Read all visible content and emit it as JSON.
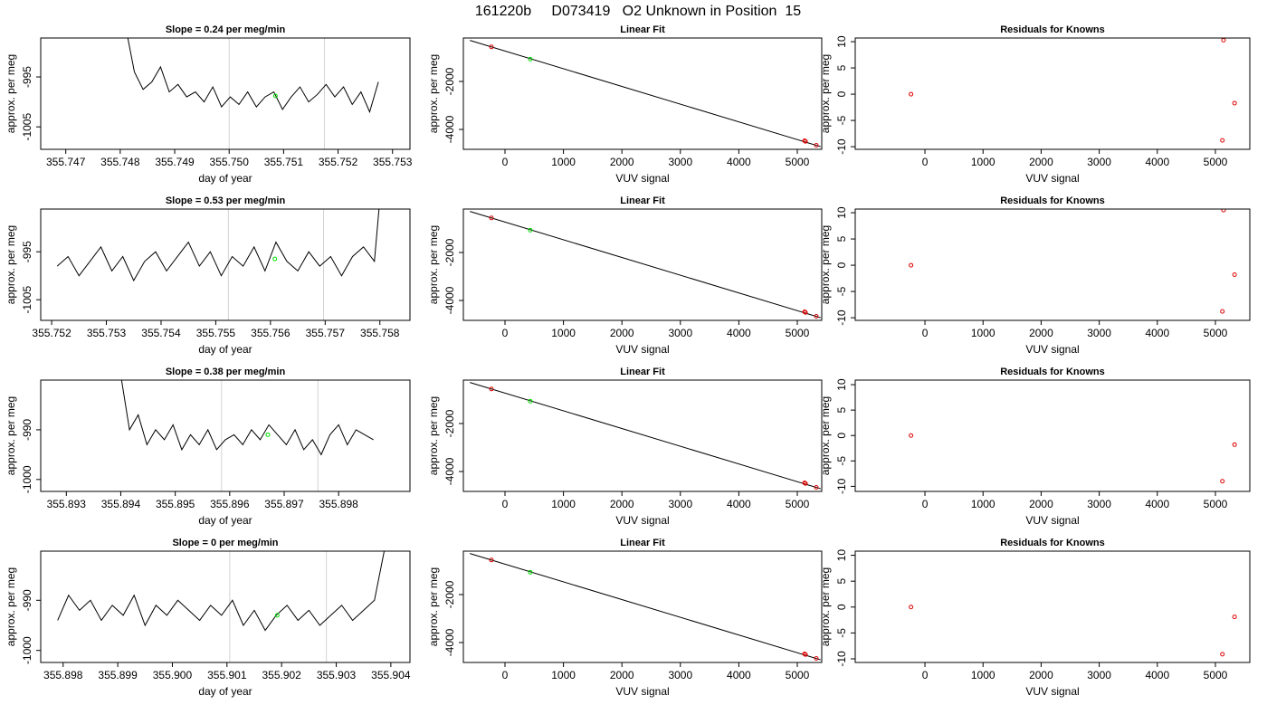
{
  "title": "161220b     D073419   O2 Unknown in Position  15",
  "chart_data": [
    {
      "type": "line",
      "title": "Slope =  0.24  per meg/min",
      "xlabel": "day of year",
      "ylabel": "approx. per meg",
      "xlim": [
        355.74654,
        355.75332
      ],
      "ylim": [
        -1009.5,
        -987.2
      ],
      "xticks": [
        355.747,
        355.748,
        355.749,
        {
          "value": 355.75,
          "label": "355.750"
        },
        355.751,
        355.752,
        355.753
      ],
      "yticks": [
        -1005,
        -995
      ],
      "vlines": [
        355.75,
        355.75175
      ],
      "vline_color": "#d3d3d3",
      "series": [
        {
          "mode": "line",
          "color": "#000000",
          "x": [
            355.7481,
            355.74826,
            355.74842,
            355.74858,
            355.74874,
            355.7489,
            355.74906,
            355.74922,
            355.74938,
            355.74954,
            355.7497,
            355.74986,
            355.75002,
            355.75018,
            355.75034,
            355.7505,
            355.75066,
            355.75082,
            355.75098,
            355.75114,
            355.7513,
            355.75146,
            355.75162,
            355.75178,
            355.75194,
            355.7521,
            355.75226,
            355.75242,
            355.75258,
            355.75274
          ],
          "values": [
            -985,
            -994,
            -997.5,
            -996,
            -993,
            -998,
            -996.5,
            -999,
            -998,
            -1000,
            -997,
            -1001,
            -999,
            -1000.5,
            -998,
            -1001,
            -999,
            -998,
            -1001.5,
            -999,
            -997,
            -1000,
            -998.5,
            -996.5,
            -999,
            -997,
            -1000.5,
            -998,
            -1002,
            -996
          ]
        },
        {
          "mode": "points",
          "color": "#00dd00",
          "x": [
            355.75085
          ],
          "values": [
            -998.8
          ]
        }
      ]
    },
    {
      "type": "scatter",
      "title": "Linear Fit",
      "xlabel": "VUV signal",
      "ylabel": "approx. per meg",
      "xlim": [
        -712,
        5418
      ],
      "ylim": [
        -4830,
        -190
      ],
      "xticks": [
        0,
        1000,
        2000,
        3000,
        4000,
        5000
      ],
      "yticks": [
        -4000,
        -2000
      ],
      "series": [
        {
          "mode": "line",
          "color": "#000000",
          "x": [
            -600,
            5400
          ],
          "values": [
            -288,
            -4720
          ]
        },
        {
          "mode": "points",
          "color": "#dd0000",
          "x": [
            -232,
            5124,
            5140,
            5325
          ],
          "values": [
            -560,
            -4470,
            -4500,
            -4660
          ]
        },
        {
          "mode": "points",
          "color": "#00dd00",
          "x": [
            433
          ],
          "values": [
            -1070
          ]
        }
      ]
    },
    {
      "type": "scatter",
      "title": "Residuals for Knowns",
      "xlabel": "VUV signal",
      "ylabel": "approx. per meg",
      "xlim": [
        -1200,
        5592
      ],
      "ylim": [
        -10.5,
        10.7
      ],
      "xticks": [
        0,
        1000,
        2000,
        3000,
        4000,
        5000
      ],
      "yticks": [
        -10,
        -5,
        0,
        5,
        10
      ],
      "series": [
        {
          "mode": "points",
          "color": "#dd0000",
          "x": [
            -240,
            5140,
            5330,
            5120
          ],
          "values": [
            0,
            10.3,
            -1.7,
            -8.8
          ]
        }
      ]
    },
    {
      "type": "line",
      "title": "Slope =  0.53  per meg/min",
      "xlabel": "day of year",
      "ylabel": "approx. per meg",
      "xlim": [
        355.7518,
        355.75855
      ],
      "ylim": [
        -1009.3,
        -986.1
      ],
      "xticks": [
        355.752,
        355.753,
        355.754,
        355.755,
        355.756,
        355.757,
        355.758
      ],
      "yticks": [
        -1005,
        -995
      ],
      "vlines": [
        355.75523,
        355.75697
      ],
      "vline_color": "#d3d3d3",
      "series": [
        {
          "mode": "line",
          "color": "#000000",
          "x": [
            355.7521,
            355.7523,
            355.7525,
            355.7527,
            355.7529,
            355.7531,
            355.7533,
            355.7535,
            355.7537,
            355.7539,
            355.7541,
            355.7543,
            355.7545,
            355.7547,
            355.7549,
            355.7551,
            355.7553,
            355.7555,
            355.7557,
            355.7559,
            355.7561,
            355.7563,
            355.7565,
            355.7567,
            355.7569,
            355.7571,
            355.7573,
            355.7575,
            355.7577,
            355.7579,
            355.758
          ],
          "values": [
            -998,
            -996,
            -1000,
            -997,
            -994,
            -999,
            -996,
            -1001,
            -997,
            -995,
            -999,
            -996,
            -993,
            -998,
            -995,
            -1000,
            -996,
            -998,
            -994,
            -999,
            -993,
            -997,
            -999,
            -995,
            -998,
            -996,
            -1000,
            -996,
            -994,
            -997,
            -984
          ]
        },
        {
          "mode": "points",
          "color": "#00dd00",
          "x": [
            355.75608
          ],
          "values": [
            -996.5
          ]
        }
      ]
    },
    {
      "type": "scatter",
      "title": "Linear Fit",
      "xlabel": "VUV signal",
      "ylabel": "approx. per meg",
      "xlim": [
        -712,
        5418
      ],
      "ylim": [
        -4830,
        -190
      ],
      "xticks": [
        0,
        1000,
        2000,
        3000,
        4000,
        5000
      ],
      "yticks": [
        -4000,
        -2000
      ],
      "series": [
        {
          "mode": "line",
          "color": "#000000",
          "x": [
            -600,
            5400
          ],
          "values": [
            -288,
            -4720
          ]
        },
        {
          "mode": "points",
          "color": "#dd0000",
          "x": [
            -232,
            5124,
            5140,
            5325
          ],
          "values": [
            -560,
            -4470,
            -4500,
            -4660
          ]
        },
        {
          "mode": "points",
          "color": "#00dd00",
          "x": [
            433
          ],
          "values": [
            -1070
          ]
        }
      ]
    },
    {
      "type": "scatter",
      "title": "Residuals for Knowns",
      "xlabel": "VUV signal",
      "ylabel": "approx. per meg",
      "xlim": [
        -1200,
        5592
      ],
      "ylim": [
        -10.5,
        10.7
      ],
      "xticks": [
        0,
        1000,
        2000,
        3000,
        4000,
        5000
      ],
      "yticks": [
        -10,
        -5,
        0,
        5,
        10
      ],
      "series": [
        {
          "mode": "points",
          "color": "#dd0000",
          "x": [
            -240,
            5140,
            5330,
            5120
          ],
          "values": [
            0,
            10.5,
            -1.8,
            -8.8
          ]
        }
      ]
    },
    {
      "type": "line",
      "title": "Slope =  0.38  per meg/min",
      "xlabel": "day of year",
      "ylabel": "approx. per meg",
      "xlim": [
        355.89253,
        355.89931
      ],
      "ylim": [
        -1002.4,
        -980
      ],
      "xticks": [
        355.893,
        355.894,
        355.895,
        355.896,
        355.897,
        355.898
      ],
      "yticks": [
        -1000,
        -990
      ],
      "vlines": [
        355.89585,
        355.89762
      ],
      "vline_color": "#d3d3d3",
      "series": [
        {
          "mode": "line",
          "color": "#000000",
          "x": [
            355.894,
            355.89416,
            355.89432,
            355.89448,
            355.89464,
            355.8948,
            355.89496,
            355.89512,
            355.89528,
            355.89544,
            355.8956,
            355.89576,
            355.89592,
            355.89608,
            355.89624,
            355.8964,
            355.89656,
            355.89672,
            355.89688,
            355.89704,
            355.8972,
            355.89736,
            355.89752,
            355.89768,
            355.89784,
            355.898,
            355.89816,
            355.89832,
            355.89848,
            355.89864
          ],
          "values": [
            -979,
            -990,
            -987,
            -993,
            -990,
            -992,
            -989,
            -994,
            -991,
            -993,
            -990,
            -994,
            -992,
            -991,
            -993,
            -990,
            -992,
            -989,
            -991,
            -993,
            -990,
            -994,
            -992,
            -995,
            -991,
            -989,
            -993,
            -990,
            -991,
            -992
          ]
        },
        {
          "mode": "points",
          "color": "#00dd00",
          "x": [
            355.8967
          ],
          "values": [
            -991
          ]
        }
      ]
    },
    {
      "type": "scatter",
      "title": "Linear Fit",
      "xlabel": "VUV signal",
      "ylabel": "approx. per meg",
      "xlim": [
        -712,
        5418
      ],
      "ylim": [
        -4830,
        -190
      ],
      "xticks": [
        0,
        1000,
        2000,
        3000,
        4000,
        5000
      ],
      "yticks": [
        -4000,
        -2000
      ],
      "series": [
        {
          "mode": "line",
          "color": "#000000",
          "x": [
            -600,
            5400
          ],
          "values": [
            -288,
            -4720
          ]
        },
        {
          "mode": "points",
          "color": "#dd0000",
          "x": [
            -232,
            5124,
            5140,
            5325
          ],
          "values": [
            -560,
            -4470,
            -4500,
            -4660
          ]
        },
        {
          "mode": "points",
          "color": "#00dd00",
          "x": [
            433
          ],
          "values": [
            -1070
          ]
        }
      ]
    },
    {
      "type": "scatter",
      "title": "Residuals for Knowns",
      "xlabel": "VUV signal",
      "ylabel": "approx. per meg",
      "xlim": [
        -1200,
        5592
      ],
      "ylim": [
        -11,
        10.9
      ],
      "xticks": [
        0,
        1000,
        2000,
        3000,
        4000,
        5000
      ],
      "yticks": [
        -10,
        -5,
        0,
        5,
        10
      ],
      "series": [
        {
          "mode": "points",
          "color": "#dd0000",
          "x": [
            -240,
            5330,
            5120
          ],
          "values": [
            0,
            -1.8,
            -9
          ]
        }
      ]
    },
    {
      "type": "line",
      "title": "Slope =  0  per meg/min",
      "xlabel": "day of year",
      "ylabel": "approx. per meg",
      "xlim": [
        355.89759,
        355.90435
      ],
      "ylim": [
        -1002.4,
        -980.2
      ],
      "xticks": [
        355.898,
        355.899,
        {
          "value": 355.9,
          "label": "355.900"
        },
        355.901,
        355.902,
        355.903,
        355.904
      ],
      "yticks": [
        -1000,
        -990
      ],
      "vlines": [
        355.90105,
        355.90282
      ],
      "vline_color": "#d3d3d3",
      "series": [
        {
          "mode": "line",
          "color": "#000000",
          "x": [
            355.8979,
            355.8981,
            355.8983,
            355.8985,
            355.8987,
            355.8989,
            355.8991,
            355.8993,
            355.8995,
            355.8997,
            355.8999,
            355.9001,
            355.9003,
            355.9005,
            355.9007,
            355.9009,
            355.9011,
            355.9013,
            355.9015,
            355.9017,
            355.9019,
            355.9021,
            355.9023,
            355.9025,
            355.9027,
            355.9029,
            355.9031,
            355.9033,
            355.9035,
            355.9037,
            355.9039
          ],
          "values": [
            -994,
            -989,
            -992,
            -990,
            -994,
            -991,
            -993,
            -989,
            -995,
            -991,
            -993,
            -990,
            -992,
            -994,
            -991,
            -993,
            -990,
            -995,
            -992,
            -996,
            -993,
            -991,
            -994,
            -992,
            -995,
            -993,
            -991,
            -994,
            -992,
            -990,
            -979
          ]
        },
        {
          "mode": "points",
          "color": "#00dd00",
          "x": [
            355.90192
          ],
          "values": [
            -993
          ]
        }
      ]
    },
    {
      "type": "scatter",
      "title": "Linear Fit",
      "xlabel": "VUV signal",
      "ylabel": "approx. per meg",
      "xlim": [
        -712,
        5418
      ],
      "ylim": [
        -4830,
        -190
      ],
      "xticks": [
        0,
        1000,
        2000,
        3000,
        4000,
        5000
      ],
      "yticks": [
        -4000,
        -2000
      ],
      "series": [
        {
          "mode": "line",
          "color": "#000000",
          "x": [
            -600,
            5400
          ],
          "values": [
            -288,
            -4720
          ]
        },
        {
          "mode": "points",
          "color": "#dd0000",
          "x": [
            -232,
            5124,
            5140,
            5325
          ],
          "values": [
            -560,
            -4470,
            -4500,
            -4660
          ]
        },
        {
          "mode": "points",
          "color": "#00dd00",
          "x": [
            433
          ],
          "values": [
            -1070
          ]
        }
      ]
    },
    {
      "type": "scatter",
      "title": "Residuals for Knowns",
      "xlabel": "VUV signal",
      "ylabel": "approx. per meg",
      "xlim": [
        -1200,
        5592
      ],
      "ylim": [
        -10.7,
        10.8
      ],
      "xticks": [
        0,
        1000,
        2000,
        3000,
        4000,
        5000
      ],
      "yticks": [
        -10,
        -5,
        0,
        5,
        10
      ],
      "series": [
        {
          "mode": "points",
          "color": "#dd0000",
          "x": [
            -240,
            5330,
            5120
          ],
          "values": [
            0,
            -1.9,
            -9.1
          ]
        }
      ]
    }
  ]
}
